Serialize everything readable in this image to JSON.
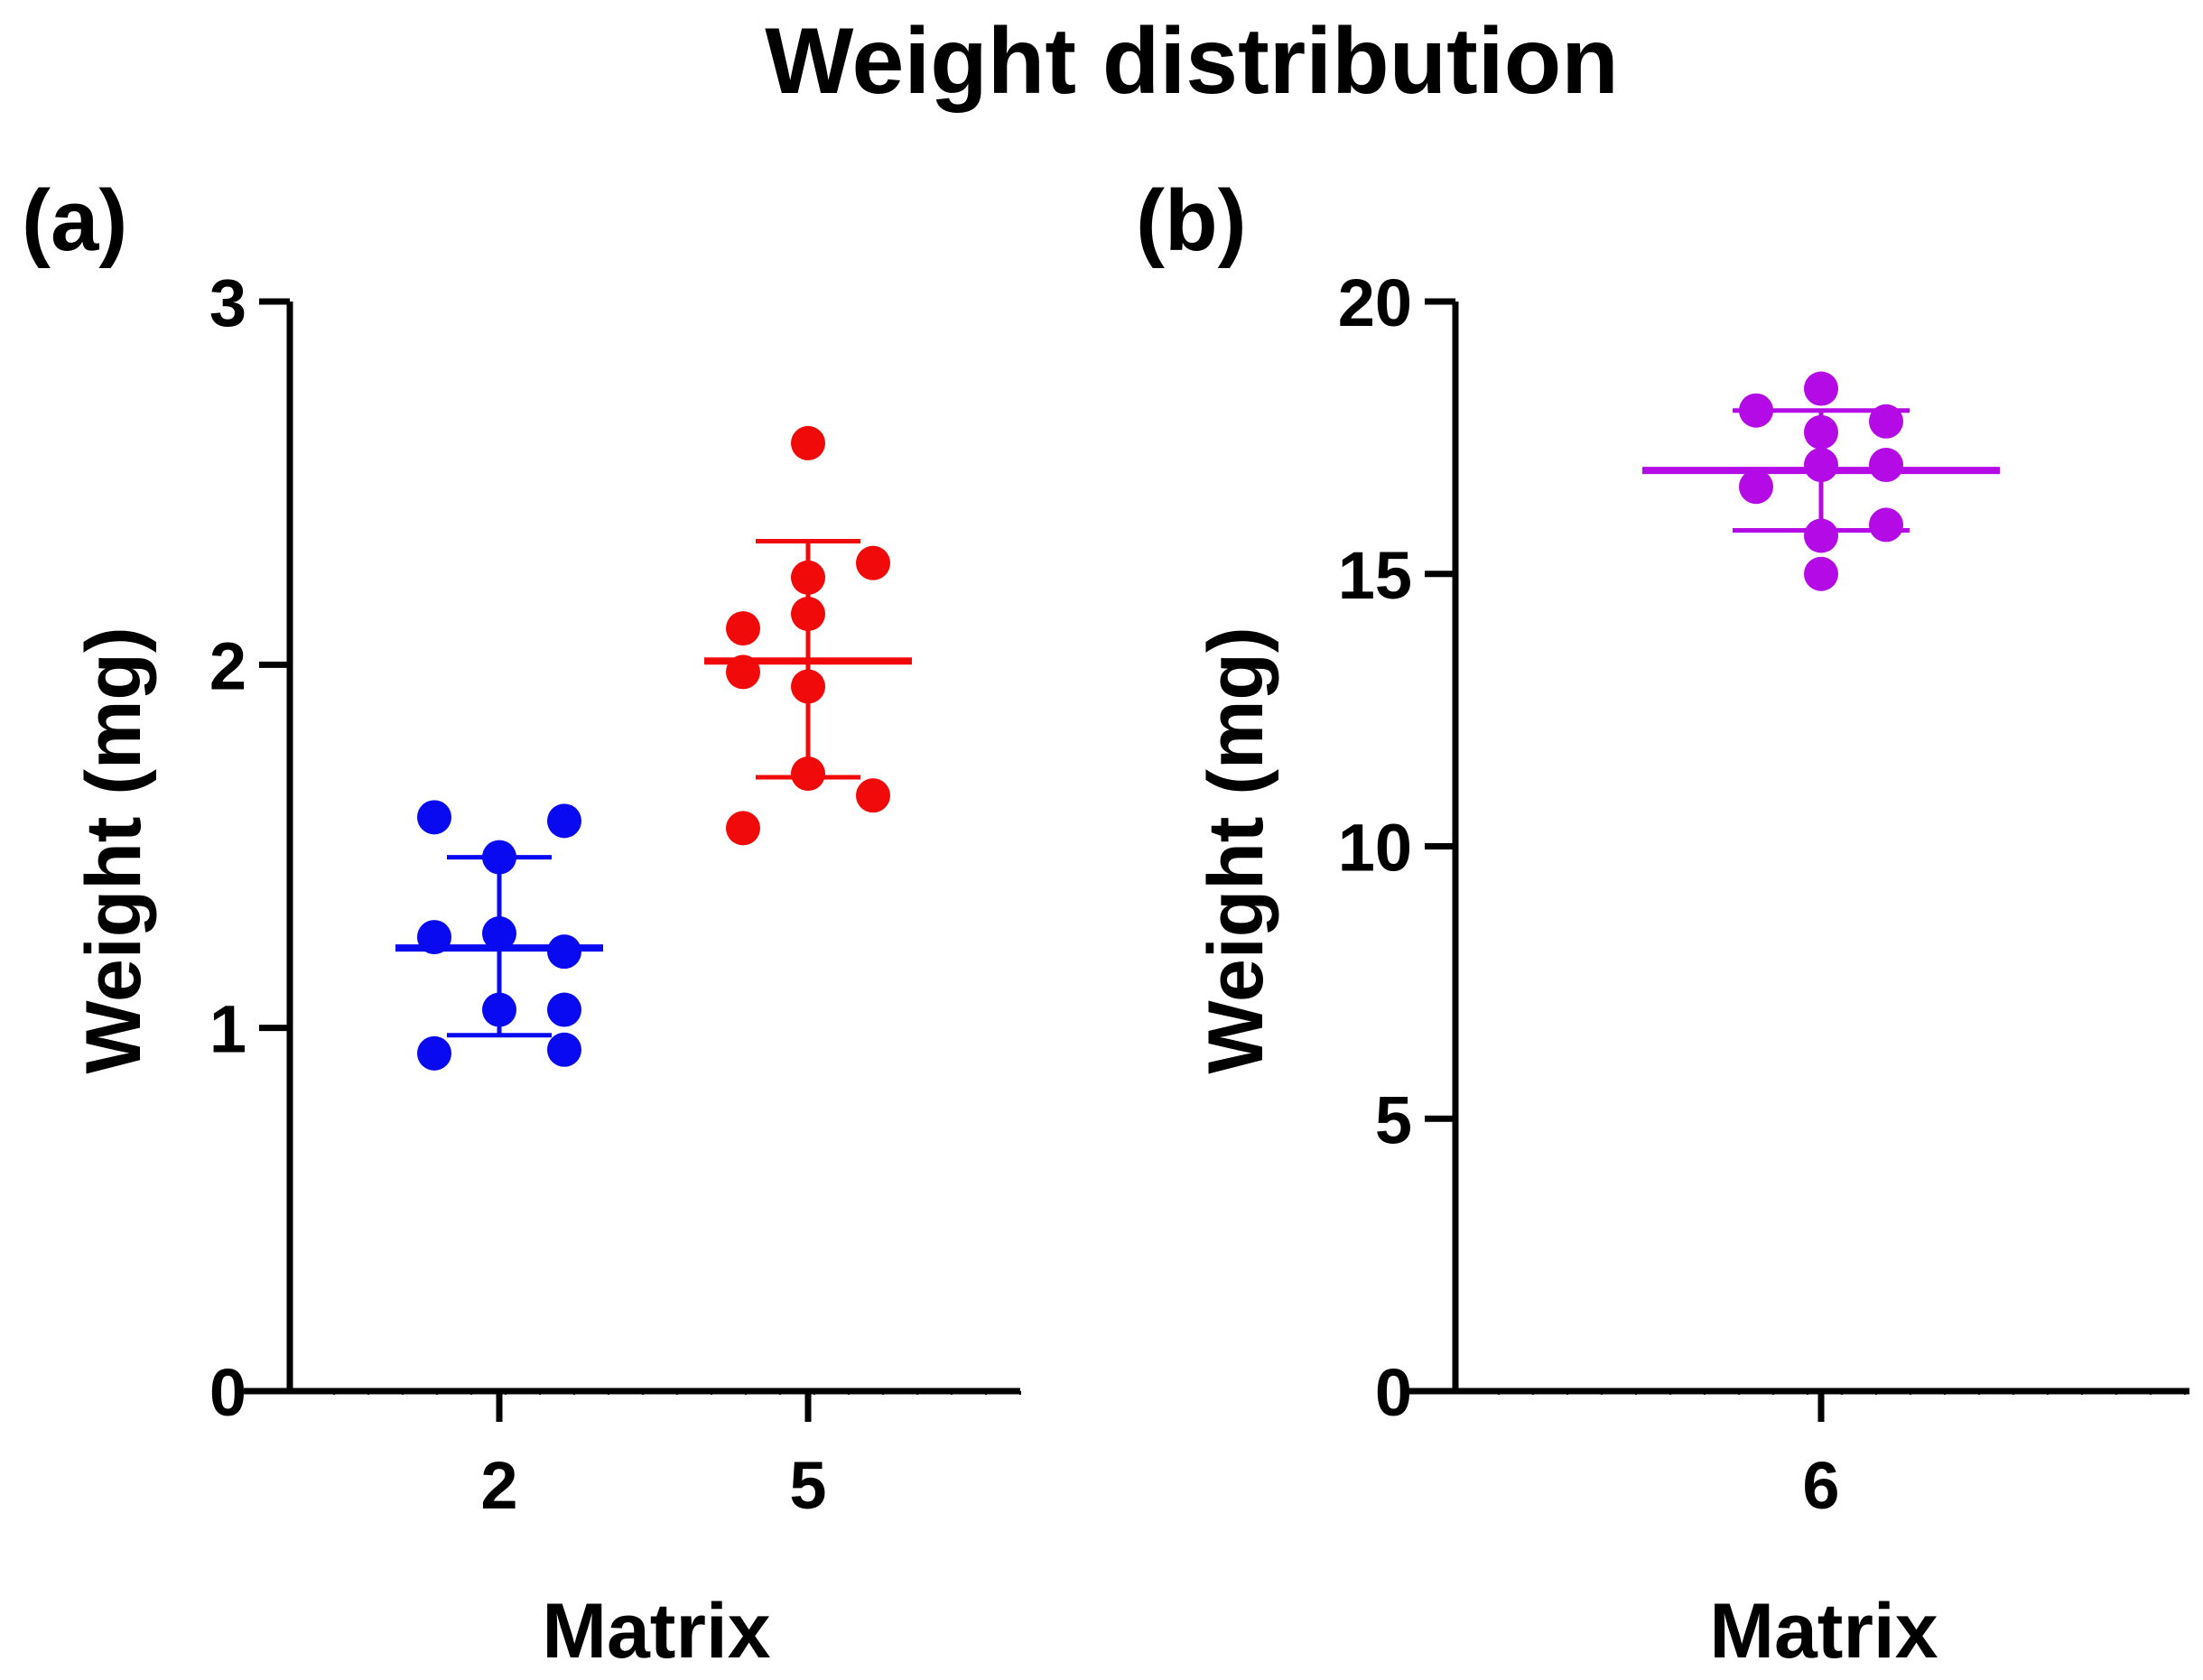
{
  "title": "Weight distribution",
  "chart_data": [
    {
      "panel_label": "(a)",
      "type": "scatter",
      "xlabel": "Matrix",
      "ylabel": "Weight (mg)",
      "ylim": [
        0,
        3
      ],
      "yticks": [
        "0",
        "1",
        "2",
        "3"
      ],
      "ytick_values": [
        0,
        1,
        2,
        3
      ],
      "categories": [
        "2",
        "5"
      ],
      "groups": [
        {
          "category": "2",
          "color": "#0a0af0",
          "mean": 1.22,
          "sd_low": 0.98,
          "sd_high": 1.47,
          "points": [
            1.58,
            1.57,
            1.47,
            1.25,
            1.26,
            1.21,
            1.05,
            1.05,
            0.93,
            0.94
          ],
          "offsets": [
            -1,
            1,
            0,
            -1,
            0,
            1,
            0,
            1,
            -1,
            1
          ]
        },
        {
          "category": "5",
          "color": "#f00a0a",
          "mean": 2.01,
          "sd_low": 1.69,
          "sd_high": 2.34,
          "points": [
            2.61,
            2.28,
            2.24,
            2.14,
            2.1,
            1.98,
            1.94,
            1.7,
            1.64,
            1.55
          ],
          "offsets": [
            0,
            1,
            0,
            0,
            -1,
            -1,
            0,
            0,
            1,
            -1
          ]
        }
      ]
    },
    {
      "panel_label": "(b)",
      "type": "scatter",
      "xlabel": "Matrix",
      "ylabel": "Weight (mg)",
      "ylim": [
        0,
        20
      ],
      "yticks": [
        "0",
        "5",
        "10",
        "15",
        "20"
      ],
      "ytick_values": [
        0,
        5,
        10,
        15,
        20
      ],
      "categories": [
        "6"
      ],
      "groups": [
        {
          "category": "6",
          "color": "#b40ae6",
          "mean": 16.9,
          "sd_low": 15.8,
          "sd_high": 18.0,
          "points": [
            18.4,
            18.0,
            17.8,
            17.6,
            17.0,
            17.0,
            16.6,
            15.9,
            15.7,
            15.0
          ],
          "offsets": [
            0,
            -1,
            1,
            0,
            0,
            1,
            -1,
            1,
            0,
            0
          ]
        }
      ]
    }
  ]
}
